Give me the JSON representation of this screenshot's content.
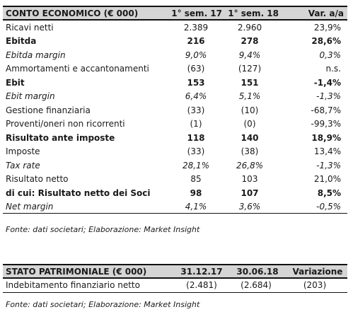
{
  "income_statement": {
    "headers": [
      "CONTO ECONOMICO (€ 000)",
      "1° sem. 17",
      "1° sem. 18",
      "Var. a/a"
    ],
    "rows": [
      {
        "label": "Ricavi netti",
        "h1_17": "2.389",
        "h1_18": "2.960",
        "var": "23,9%",
        "style": "normal"
      },
      {
        "label": "Ebitda",
        "h1_17": "216",
        "h1_18": "278",
        "var": "28,6%",
        "style": "bold"
      },
      {
        "label": "Ebitda margin",
        "h1_17": "9,0%",
        "h1_18": "9,4%",
        "var": "0,3%",
        "style": "italic"
      },
      {
        "label": "Ammortamenti e accantonamenti",
        "h1_17": "(63)",
        "h1_18": "(127)",
        "var": "n.s.",
        "style": "normal"
      },
      {
        "label": "Ebit",
        "h1_17": "153",
        "h1_18": "151",
        "var": "-1,4%",
        "style": "bold"
      },
      {
        "label": "Ebit margin",
        "h1_17": "6,4%",
        "h1_18": "5,1%",
        "var": "-1,3%",
        "style": "italic"
      },
      {
        "label": "Gestione finanziaria",
        "h1_17": "(33)",
        "h1_18": "(10)",
        "var": "-68,7%",
        "style": "normal"
      },
      {
        "label": "Proventi/oneri non ricorrenti",
        "h1_17": "(1)",
        "h1_18": "(0)",
        "var": "-99,3%",
        "style": "normal"
      },
      {
        "label": "Risultato ante imposte",
        "h1_17": "118",
        "h1_18": "140",
        "var": "18,9%",
        "style": "bold"
      },
      {
        "label": "Imposte",
        "h1_17": "(33)",
        "h1_18": "(38)",
        "var": "13,4%",
        "style": "normal"
      },
      {
        "label": "Tax rate",
        "h1_17": "28,1%",
        "h1_18": "26,8%",
        "var": "-1,3%",
        "style": "italic"
      },
      {
        "label": "Risultato netto",
        "h1_17": "85",
        "h1_18": "103",
        "var": "21,0%",
        "style": "normal"
      },
      {
        "label": "di cui: Risultato netto dei Soci",
        "h1_17": "98",
        "h1_18": "107",
        "var": "8,5%",
        "style": "bold"
      },
      {
        "label": "Net margin",
        "h1_17": "4,1%",
        "h1_18": "3,6%",
        "var": "-0,5%",
        "style": "italic"
      }
    ],
    "source": "Fonte: dati societari; Elaborazione: Market Insight"
  },
  "balance_sheet": {
    "headers": [
      "STATO PATRIMONIALE (€ 000)",
      "31.12.17",
      "30.06.18",
      "Variazione"
    ],
    "rows": [
      {
        "label": "Indebitamento finanziario netto",
        "d1": "(2.481)",
        "d2": "(2.684)",
        "var": "(203)"
      }
    ],
    "source": "Fonte: dati societari; Elaborazione: Market Insight"
  }
}
